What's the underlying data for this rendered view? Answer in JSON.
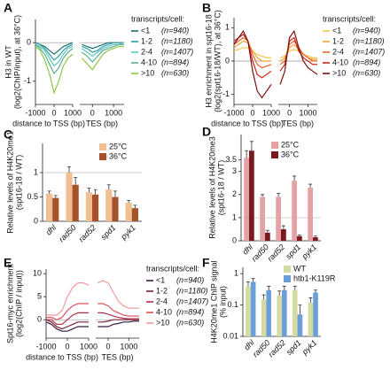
{
  "chart_data": [
    {
      "type": "line",
      "title": "A",
      "ylabel": [
        "H3 in WT",
        "(log2(ChIP/input), at 36°C)"
      ],
      "ylim": [
        -1.6,
        0.6
      ],
      "yticks": [
        -1,
        0
      ],
      "refline": 0,
      "legend_title": "transcripts/cell:",
      "subplots": [
        {
          "xlabel": "distance to TSS (bp)",
          "x": [
            -1000,
            -750,
            -500,
            -250,
            0,
            250,
            500,
            750,
            1000
          ],
          "xlim": [
            -1000,
            1000
          ],
          "xticks": [
            -1000,
            0,
            1000
          ],
          "series": [
            {
              "name": "<1",
              "n_label": "(n=940)",
              "color": "#1b6f74",
              "values": [
                0,
                -0.05,
                -0.1,
                -0.2,
                -0.3,
                -0.2,
                -0.1,
                -0.05,
                0
              ]
            },
            {
              "name": "1-2",
              "n_label": "(n=1180)",
              "color": "#2a9c9e",
              "values": [
                0,
                -0.05,
                -0.15,
                -0.3,
                -0.45,
                -0.35,
                -0.2,
                -0.1,
                -0.05
              ]
            },
            {
              "name": "2-4",
              "n_label": "(n=1407)",
              "color": "#5cc6c0",
              "values": [
                -0.05,
                -0.1,
                -0.2,
                -0.4,
                -0.6,
                -0.5,
                -0.3,
                -0.15,
                -0.1
              ]
            },
            {
              "name": "4-10",
              "n_label": "(n=894)",
              "color": "#5fae8c",
              "values": [
                -0.05,
                -0.15,
                -0.3,
                -0.55,
                -0.8,
                -0.65,
                -0.4,
                -0.25,
                -0.15
              ]
            },
            {
              "name": ">10",
              "n_label": "(n=630)",
              "color": "#8cc84b",
              "values": [
                -0.1,
                -0.2,
                -0.45,
                -0.8,
                -1.3,
                -1.0,
                -0.6,
                -0.4,
                -0.3
              ]
            }
          ]
        },
        {
          "xlabel": "TES (bp)",
          "x": [
            -500,
            -250,
            0,
            250,
            500,
            750,
            1000,
            1250,
            1500
          ],
          "xlim": [
            -600,
            1500
          ],
          "xticks": [
            0,
            1000
          ],
          "series": [
            {
              "values": [
                -0.05,
                -0.1,
                -0.15,
                -0.1,
                -0.05,
                0,
                0,
                0,
                0
              ]
            },
            {
              "values": [
                -0.1,
                -0.15,
                -0.25,
                -0.2,
                -0.1,
                -0.05,
                0,
                0,
                0
              ]
            },
            {
              "values": [
                -0.15,
                -0.25,
                -0.35,
                -0.25,
                -0.15,
                -0.1,
                -0.05,
                -0.05,
                0
              ]
            },
            {
              "values": [
                -0.25,
                -0.35,
                -0.5,
                -0.35,
                -0.2,
                -0.15,
                -0.1,
                -0.05,
                -0.05
              ]
            },
            {
              "values": [
                -0.4,
                -0.55,
                -0.7,
                -0.5,
                -0.3,
                -0.2,
                -0.15,
                -0.1,
                -0.1
              ]
            }
          ]
        }
      ]
    },
    {
      "type": "line",
      "title": "B",
      "ylabel": [
        "H3 enrichment in spt16-18",
        "(log2(spt16-18/WT), at 36°C)"
      ],
      "ylim": [
        -1.3,
        1.3
      ],
      "yticks": [
        -1,
        0,
        1
      ],
      "refline": 0,
      "legend_title": "transcripts/cell:",
      "subplots": [
        {
          "xlabel": "distance to TSS (bp)",
          "x": [
            -1000,
            -750,
            -500,
            -250,
            0,
            250,
            500,
            750,
            1000
          ],
          "xlim": [
            -1000,
            1000
          ],
          "xticks": [
            -1000,
            0,
            1000
          ],
          "series": [
            {
              "name": "<1",
              "n_label": "(n=940)",
              "color": "#f2c84b",
              "values": [
                0.3,
                0.35,
                0.4,
                0.4,
                0.3,
                0.2,
                0.15,
                0.1,
                0.1
              ]
            },
            {
              "name": "1-2",
              "n_label": "(n=1180)",
              "color": "#f0a030",
              "values": [
                0.4,
                0.5,
                0.6,
                0.55,
                0.3,
                0.1,
                0,
                0,
                0
              ]
            },
            {
              "name": "2-4",
              "n_label": "(n=1407)",
              "color": "#e8642a",
              "values": [
                0.5,
                0.6,
                0.7,
                0.6,
                0.2,
                -0.1,
                -0.2,
                -0.15,
                -0.1
              ]
            },
            {
              "name": "4-10",
              "n_label": "(n=894)",
              "color": "#c8281e",
              "values": [
                0.6,
                0.7,
                0.8,
                0.6,
                0,
                -0.4,
                -0.5,
                -0.4,
                -0.3
              ]
            },
            {
              "name": ">10",
              "n_label": "(n=630)",
              "color": "#7a1010",
              "values": [
                0.5,
                0.7,
                0.9,
                0.6,
                -0.3,
                -0.9,
                -1.1,
                -0.9,
                -0.7
              ]
            }
          ]
        },
        {
          "xlabel": "TES (bp)",
          "x": [
            -500,
            -250,
            0,
            250,
            500,
            750,
            1000,
            1250,
            1500
          ],
          "xlim": [
            -600,
            1500
          ],
          "xticks": [
            0,
            1000
          ],
          "series": [
            {
              "values": [
                0.1,
                0.15,
                0.3,
                0.35,
                0.3,
                0.2,
                0.15,
                0.1,
                0.1
              ]
            },
            {
              "values": [
                0,
                0.1,
                0.4,
                0.5,
                0.35,
                0.2,
                0.1,
                0.05,
                0.05
              ]
            },
            {
              "values": [
                -0.1,
                0,
                0.5,
                0.6,
                0.4,
                0.2,
                0.1,
                0,
                0
              ]
            },
            {
              "values": [
                -0.3,
                -0.1,
                0.6,
                0.7,
                0.3,
                0.1,
                0,
                -0.1,
                -0.1
              ]
            },
            {
              "values": [
                -0.7,
                -0.3,
                0.7,
                0.9,
                0.4,
                0,
                -0.2,
                -0.3,
                -0.4
              ]
            }
          ]
        }
      ]
    },
    {
      "type": "bar",
      "title": "C",
      "ylabel": [
        "Relative levels of H4K20me1",
        "(spt16-18 / WT)"
      ],
      "categories": [
        "dhl",
        "rad50",
        "rad52",
        "spd1",
        "pyk1"
      ],
      "ylim": [
        0,
        1.6
      ],
      "yticks": [
        0,
        0.5,
        1
      ],
      "refline": 1,
      "log": false,
      "series": [
        {
          "name": "25°C",
          "color": "#f2bf92",
          "values": [
            0.57,
            1.0,
            0.6,
            0.65,
            0.38
          ],
          "errors": [
            0.05,
            0.12,
            0.08,
            0.1,
            0.05
          ]
        },
        {
          "name": "36°C",
          "color": "#a5532b",
          "values": [
            0.48,
            0.75,
            0.55,
            0.5,
            0.27
          ],
          "errors": [
            0.05,
            0.15,
            0.1,
            0.12,
            0.06
          ]
        }
      ]
    },
    {
      "type": "bar",
      "title": "D",
      "ylabel": [
        "Relative levels of H4K20me3",
        "(spt16-18 / WT)"
      ],
      "categories": [
        "dhl",
        "rad50",
        "rad52",
        "spd1",
        "pyk1"
      ],
      "ylim": [
        0,
        4.6
      ],
      "yticks": [
        0,
        1,
        2,
        3,
        3.5
      ],
      "refline": 1,
      "log": false,
      "series": [
        {
          "name": "25°C",
          "color": "#e5a2a4",
          "values": [
            3.6,
            1.9,
            1.9,
            2.6,
            2.3
          ],
          "errors": [
            0.3,
            0.1,
            0.15,
            0.2,
            0.15
          ]
        },
        {
          "name": "36°C",
          "color": "#7a1a1e",
          "values": [
            3.9,
            0.35,
            0.5,
            0.2,
            0.15
          ],
          "errors": [
            0.4,
            0.1,
            0.15,
            0.05,
            0.05
          ]
        }
      ]
    },
    {
      "type": "line",
      "title": "E",
      "ylabel": [
        "Spt16-myc enrichment",
        "(log2(ChIP / input))"
      ],
      "ylim": [
        -4,
        11
      ],
      "yticks": [
        0,
        5,
        10
      ],
      "refline": 0,
      "legend_title": "transcripts/cell:",
      "subplots": [
        {
          "xlabel": "distance to TSS (bp)",
          "x": [
            -1000,
            -750,
            -500,
            -250,
            0,
            250,
            500,
            750,
            1000
          ],
          "xlim": [
            -1000,
            1000
          ],
          "xticks": [
            -1000,
            0,
            1000
          ],
          "series": [
            {
              "name": "<1",
              "n_label": "(n=940)",
              "color": "#3a1b3e",
              "values": [
                -0.5,
                -1,
                -2,
                -2.5,
                -2.5,
                -2,
                -1.5,
                -1.5,
                -1.5
              ]
            },
            {
              "name": "1-2",
              "n_label": "(n=1180)",
              "color": "#7a1e3c",
              "values": [
                0,
                -0.5,
                -1.5,
                -2,
                -1.5,
                -1,
                -0.5,
                -0.5,
                -0.5
              ]
            },
            {
              "name": "2-4",
              "n_label": "(n=1407)",
              "color": "#b3304a",
              "values": [
                0,
                0,
                -1,
                -1,
                0,
                1,
                1.5,
                1.5,
                1.5
              ]
            },
            {
              "name": "4-10",
              "n_label": "(n=894)",
              "color": "#d8525a",
              "values": [
                0.5,
                0.5,
                0,
                0.5,
                2,
                3,
                3.5,
                3.5,
                3.5
              ]
            },
            {
              "name": ">10",
              "n_label": "(n=630)",
              "color": "#f09a9a",
              "values": [
                1,
                1,
                1,
                2,
                5,
                7,
                8,
                8,
                7.5
              ]
            }
          ]
        },
        {
          "xlabel": "TES (bp)",
          "x": [
            -500,
            -250,
            0,
            250,
            500,
            750,
            1000,
            1250,
            1500
          ],
          "xlim": [
            -600,
            1500
          ],
          "xticks": [
            0,
            1000
          ],
          "series": [
            {
              "values": [
                -1.5,
                -1.5,
                -1.5,
                -1,
                -0.8,
                -0.5,
                -0.5,
                -0.3,
                -0.3
              ]
            },
            {
              "values": [
                -0.5,
                -0.5,
                -0.3,
                0,
                0,
                0,
                0,
                0,
                0
              ]
            },
            {
              "values": [
                1.5,
                1.5,
                1.2,
                0.8,
                0.5,
                0.3,
                0.2,
                0.2,
                0.2
              ]
            },
            {
              "values": [
                3.5,
                3.5,
                3,
                2,
                1.5,
                1,
                0.8,
                0.8,
                0.8
              ]
            },
            {
              "values": [
                8,
                8.5,
                8,
                6,
                4,
                3,
                2.5,
                2.5,
                2.5
              ]
            }
          ]
        }
      ]
    },
    {
      "type": "bar",
      "title": "F",
      "ylabel": [
        "H4K20me1 ChIP signal",
        "(% input)"
      ],
      "categories": [
        "dhl",
        "rad50",
        "rad52",
        "spd1",
        "pyk1"
      ],
      "ylim": [
        0.01,
        1.6
      ],
      "yticks": [
        0.01,
        0.1,
        1
      ],
      "log": true,
      "series": [
        {
          "name": "WT",
          "color": "#d5dba0",
          "values": [
            0.4,
            0.15,
            0.2,
            0.3,
            0.12
          ],
          "errors": [
            0.15,
            0.06,
            0.08,
            0.1,
            0.05
          ]
        },
        {
          "name": "htb1-K119R",
          "color": "#6b9fd9",
          "values": [
            0.55,
            0.3,
            0.3,
            0.05,
            0.25
          ],
          "errors": [
            0.15,
            0.1,
            0.1,
            0.05,
            0.05
          ]
        }
      ]
    }
  ]
}
